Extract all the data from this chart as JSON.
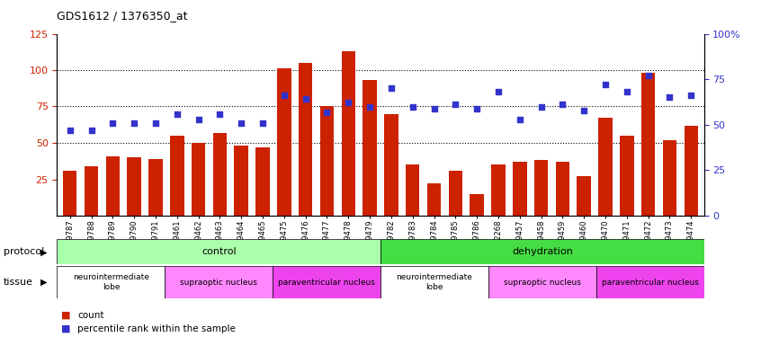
{
  "title": "GDS1612 / 1376350_at",
  "samples": [
    "GSM69787",
    "GSM69788",
    "GSM69789",
    "GSM69790",
    "GSM69791",
    "GSM69461",
    "GSM69462",
    "GSM69463",
    "GSM69464",
    "GSM69465",
    "GSM69475",
    "GSM69476",
    "GSM69477",
    "GSM69478",
    "GSM69479",
    "GSM69782",
    "GSM69783",
    "GSM69784",
    "GSM69785",
    "GSM69786",
    "GSM92268",
    "GSM69457",
    "GSM69458",
    "GSM69459",
    "GSM69460",
    "GSM69470",
    "GSM69471",
    "GSM69472",
    "GSM69473",
    "GSM69474"
  ],
  "counts": [
    31,
    34,
    41,
    40,
    39,
    55,
    50,
    57,
    48,
    47,
    101,
    105,
    75,
    113,
    93,
    70,
    35,
    22,
    31,
    15,
    35,
    37,
    38,
    37,
    27,
    67,
    55,
    98,
    52,
    62
  ],
  "percentiles": [
    47,
    47,
    51,
    51,
    51,
    56,
    53,
    56,
    51,
    51,
    66,
    64,
    57,
    62,
    60,
    70,
    60,
    59,
    61,
    59,
    68,
    53,
    60,
    61,
    58,
    72,
    68,
    77,
    65,
    66
  ],
  "bar_color": "#cc2200",
  "dot_color": "#3333cc",
  "left_ylim": [
    0,
    125
  ],
  "left_yticks": [
    25,
    50,
    75,
    100,
    125
  ],
  "right_ylim": [
    0,
    100
  ],
  "right_yticks": [
    0,
    25,
    50,
    75,
    100
  ],
  "right_yticklabels": [
    "0",
    "25",
    "50",
    "75",
    "100%"
  ],
  "grid_lines": [
    50,
    75,
    100
  ],
  "protocol_regions": [
    {
      "label": "control",
      "start": 0,
      "end": 15,
      "color": "#aaffaa"
    },
    {
      "label": "dehydration",
      "start": 15,
      "end": 30,
      "color": "#44dd44"
    }
  ],
  "tissue_regions": [
    {
      "label": "neurointermediate\nlobe",
      "start": 0,
      "end": 5,
      "color": "#ffffff"
    },
    {
      "label": "supraoptic nucleus",
      "start": 5,
      "end": 10,
      "color": "#ff88ff"
    },
    {
      "label": "paraventricular nucleus",
      "start": 10,
      "end": 15,
      "color": "#ee44ee"
    },
    {
      "label": "neurointermediate\nlobe",
      "start": 15,
      "end": 20,
      "color": "#ffffff"
    },
    {
      "label": "supraoptic nucleus",
      "start": 20,
      "end": 25,
      "color": "#ff88ff"
    },
    {
      "label": "paraventricular nucleus",
      "start": 25,
      "end": 30,
      "color": "#ee44ee"
    }
  ],
  "legend_count_color": "#cc2200",
  "legend_dot_color": "#3333cc",
  "protocol_label": "protocol",
  "tissue_label": "tissue"
}
